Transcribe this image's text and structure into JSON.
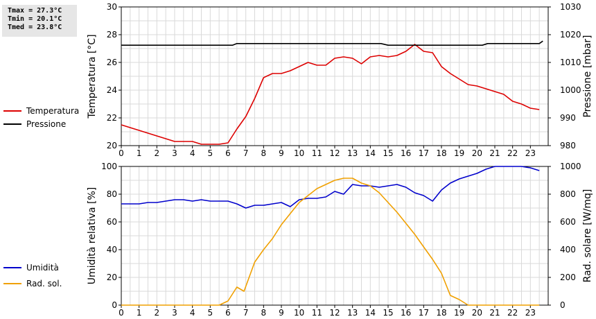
{
  "stats": {
    "tmax": "Tmax = 27.3°C",
    "tmin": "Tmin = 20.1°C",
    "tmed": "Tmed = 23.8°C"
  },
  "chart_data": [
    {
      "type": "line",
      "xlim": [
        0,
        24
      ],
      "x_ticks": [
        "0",
        "1",
        "2",
        "3",
        "4",
        "5",
        "6",
        "7",
        "8",
        "9",
        "10",
        "11",
        "12",
        "13",
        "14",
        "15",
        "16",
        "17",
        "18",
        "19",
        "20",
        "21",
        "22",
        "23"
      ],
      "ylabel": "Temperatura [°C]",
      "ylim": [
        20,
        30
      ],
      "y_ticks": [
        "20",
        "22",
        "24",
        "26",
        "28",
        "30"
      ],
      "y2label": "Pressione [mbar]",
      "y2lim": [
        980,
        1030
      ],
      "y2_ticks": [
        "980",
        "990",
        "1000",
        "1010",
        "1020",
        "1030"
      ],
      "grid": true,
      "legend_position": "left",
      "series": [
        {
          "name": "Temperatura",
          "axis": "left",
          "color": "#dd0000",
          "x": [
            0,
            0.5,
            1,
            1.5,
            2,
            2.5,
            3,
            3.5,
            4,
            4.5,
            5,
            5.5,
            6,
            6.5,
            7,
            7.5,
            8,
            8.5,
            9,
            9.5,
            10,
            10.5,
            11,
            11.5,
            12,
            12.5,
            13,
            13.5,
            14,
            14.5,
            15,
            15.5,
            16,
            16.5,
            17,
            17.5,
            18,
            18.5,
            19,
            19.5,
            20,
            20.5,
            21,
            21.5,
            22,
            22.5,
            23,
            23.5
          ],
          "y": [
            21.5,
            21.3,
            21.1,
            20.9,
            20.7,
            20.5,
            20.3,
            20.3,
            20.3,
            20.1,
            20.1,
            20.1,
            20.2,
            21.2,
            22.1,
            23.4,
            24.9,
            25.2,
            25.2,
            25.4,
            25.7,
            26.0,
            25.8,
            25.8,
            26.3,
            26.4,
            26.3,
            25.9,
            26.4,
            26.5,
            26.4,
            26.5,
            26.8,
            27.3,
            26.8,
            26.7,
            25.7,
            25.2,
            24.8,
            24.4,
            24.3,
            24.1,
            23.9,
            23.7,
            23.2,
            23.0,
            22.7,
            22.6
          ]
        },
        {
          "name": "Pressione",
          "axis": "right",
          "color": "#000000",
          "x": [
            0,
            6.25,
            6.5,
            14.6,
            15,
            20.3,
            20.6,
            23.5,
            23.7
          ],
          "y": [
            1016.2,
            1016.2,
            1016.8,
            1016.8,
            1016.2,
            1016.2,
            1016.8,
            1016.8,
            1017.7
          ]
        }
      ]
    },
    {
      "type": "line",
      "xlim": [
        0,
        24
      ],
      "x_ticks": [
        "0",
        "1",
        "2",
        "3",
        "4",
        "5",
        "6",
        "7",
        "8",
        "9",
        "10",
        "11",
        "12",
        "13",
        "14",
        "15",
        "16",
        "17",
        "18",
        "19",
        "20",
        "21",
        "22",
        "23"
      ],
      "ylabel": "Umidità relativa [%]",
      "ylim": [
        0,
        100
      ],
      "y_ticks": [
        "0",
        "20",
        "40",
        "60",
        "80",
        "100"
      ],
      "y2label": "Rad. solare [W/mq]",
      "y2lim": [
        0,
        1000
      ],
      "y2_ticks": [
        "0",
        "200",
        "400",
        "600",
        "800",
        "1000"
      ],
      "grid": true,
      "legend_position": "left",
      "series": [
        {
          "name": "Umidità",
          "axis": "left",
          "color": "#0000cc",
          "x": [
            0,
            0.5,
            1,
            1.5,
            2,
            2.5,
            3,
            3.5,
            4,
            4.5,
            5,
            5.5,
            6,
            6.5,
            7,
            7.5,
            8,
            8.5,
            9,
            9.5,
            10,
            10.5,
            11,
            11.5,
            12,
            12.5,
            13,
            13.5,
            14,
            14.5,
            15,
            15.5,
            16,
            16.5,
            17,
            17.5,
            18,
            18.5,
            19,
            19.5,
            20,
            20.5,
            21,
            21.5,
            22,
            22.5,
            23,
            23.5
          ],
          "y": [
            73,
            73,
            73,
            74,
            74,
            75,
            76,
            76,
            75,
            76,
            75,
            75,
            75,
            73,
            70,
            72,
            72,
            73,
            74,
            71,
            76,
            77,
            77,
            78,
            82,
            80,
            87,
            86,
            86,
            85,
            86,
            87,
            85,
            81,
            79,
            75,
            83,
            88,
            91,
            93,
            95,
            98,
            100,
            100,
            100,
            100,
            99,
            97
          ]
        },
        {
          "name": "Rad. sol.",
          "axis": "right",
          "color": "#f0a000",
          "x": [
            0,
            5.5,
            6,
            6.5,
            6.9,
            7.5,
            8,
            8.5,
            9,
            9.5,
            10,
            10.5,
            11,
            11.5,
            12,
            12.5,
            13,
            13.5,
            14,
            14.5,
            15,
            15.5,
            16,
            16.5,
            17,
            17.5,
            18,
            18.5,
            19,
            19.5,
            20,
            23.5
          ],
          "y": [
            0,
            0,
            30,
            130,
            100,
            310,
            400,
            480,
            580,
            660,
            740,
            790,
            840,
            870,
            900,
            915,
            915,
            880,
            860,
            810,
            740,
            670,
            590,
            510,
            420,
            330,
            230,
            70,
            40,
            0,
            0,
            0
          ]
        }
      ]
    }
  ]
}
